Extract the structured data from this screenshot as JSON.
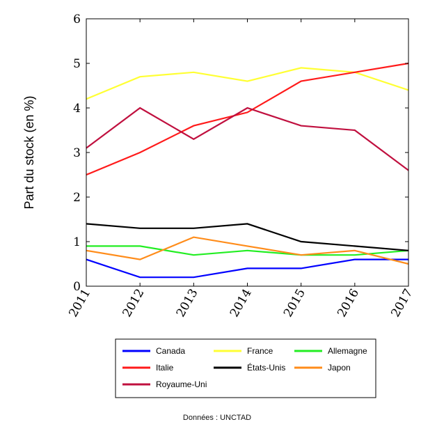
{
  "chart_data": {
    "type": "line",
    "x": [
      "2011",
      "2012",
      "2013",
      "2014",
      "2015",
      "2016",
      "2017"
    ],
    "ylabel": "Part du stock (en %)",
    "xlabel": "",
    "ylim": [
      0,
      6
    ],
    "yticks": [
      "0",
      "1",
      "2",
      "3",
      "4",
      "5",
      "6"
    ],
    "grid": false,
    "legend_placement": "bottom",
    "series": [
      {
        "name": "Canada",
        "color": "#0000ff",
        "values": [
          0.6,
          0.2,
          0.2,
          0.4,
          0.4,
          0.6,
          0.6
        ]
      },
      {
        "name": "France",
        "color": "#ffff33",
        "values": [
          4.2,
          4.7,
          4.8,
          4.6,
          4.9,
          4.8,
          4.4
        ]
      },
      {
        "name": "Allemagne",
        "color": "#22ee22",
        "values": [
          0.9,
          0.9,
          0.7,
          0.8,
          0.7,
          0.7,
          0.8
        ]
      },
      {
        "name": "Italie",
        "color": "#ff1a1a",
        "values": [
          2.5,
          3.0,
          3.6,
          3.9,
          4.6,
          4.8,
          5.0
        ]
      },
      {
        "name": "États-Unis",
        "color": "#000000",
        "values": [
          1.4,
          1.3,
          1.3,
          1.4,
          1.0,
          0.9,
          0.8
        ]
      },
      {
        "name": "Japon",
        "color": "#ff8c1a",
        "values": [
          0.8,
          0.6,
          1.1,
          0.9,
          0.7,
          0.8,
          0.5
        ]
      },
      {
        "name": "Royaume-Uni",
        "color": "#c0103f",
        "values": [
          3.1,
          4.0,
          3.3,
          4.0,
          3.6,
          3.5,
          2.6
        ]
      }
    ]
  },
  "source": "Données : UNCTAD"
}
